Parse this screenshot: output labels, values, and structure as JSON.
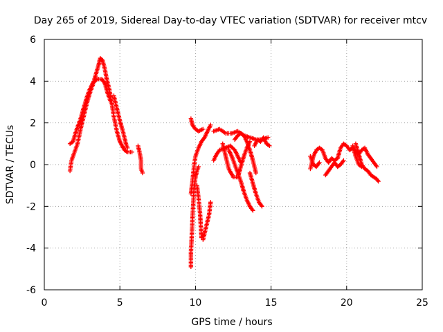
{
  "chart_data": {
    "type": "scatter",
    "title": "Day 265 of 2019, Sidereal Day-to-day VTEC variation (SDTVAR) for receiver mtcv",
    "xlabel": "GPS time / hours",
    "ylabel": "SDTVAR / TECUs",
    "xlim": [
      0,
      25
    ],
    "ylim": [
      -6,
      6
    ],
    "xticks": [
      0,
      5,
      10,
      15,
      20,
      25
    ],
    "yticks": [
      -6,
      -4,
      -2,
      0,
      2,
      4,
      6
    ],
    "grid": true,
    "marker": "plus",
    "color": "#ff0000",
    "tracks": [
      [
        [
          1.7,
          -0.3
        ],
        [
          1.8,
          0.2
        ],
        [
          2.0,
          0.6
        ],
        [
          2.2,
          1.0
        ],
        [
          2.4,
          1.7
        ],
        [
          2.6,
          2.3
        ],
        [
          2.8,
          2.9
        ],
        [
          3.0,
          3.4
        ],
        [
          3.2,
          3.8
        ],
        [
          3.4,
          4.3
        ],
        [
          3.6,
          4.8
        ],
        [
          3.7,
          5.1
        ],
        [
          3.85,
          5.0
        ],
        [
          4.0,
          4.6
        ],
        [
          4.1,
          4.2
        ],
        [
          4.3,
          3.6
        ],
        [
          4.45,
          3.0
        ],
        [
          4.6,
          2.3
        ],
        [
          4.8,
          1.6
        ],
        [
          5.0,
          1.1
        ],
        [
          5.3,
          0.7
        ],
        [
          5.5,
          0.6
        ],
        [
          5.8,
          0.6
        ]
      ],
      [
        [
          1.7,
          1.0
        ],
        [
          1.9,
          1.1
        ],
        [
          2.1,
          1.6
        ],
        [
          2.4,
          2.2
        ],
        [
          2.6,
          2.7
        ],
        [
          2.8,
          3.2
        ],
        [
          3.0,
          3.6
        ],
        [
          3.2,
          3.9
        ],
        [
          3.5,
          4.1
        ],
        [
          3.8,
          4.1
        ],
        [
          4.0,
          3.9
        ],
        [
          4.2,
          3.4
        ],
        [
          4.4,
          3.0
        ]
      ],
      [
        [
          4.6,
          3.3
        ],
        [
          4.8,
          2.7
        ],
        [
          5.0,
          2.1
        ],
        [
          5.2,
          1.6
        ],
        [
          5.4,
          1.0
        ],
        [
          5.5,
          0.8
        ]
      ],
      [
        [
          6.2,
          0.9
        ],
        [
          6.3,
          0.6
        ],
        [
          6.4,
          0.2
        ],
        [
          6.4,
          -0.2
        ],
        [
          6.5,
          -0.4
        ]
      ],
      [
        [
          9.7,
          -4.9
        ],
        [
          9.7,
          -4.2
        ],
        [
          9.75,
          -3.5
        ],
        [
          9.8,
          -2.6
        ],
        [
          9.85,
          -1.9
        ],
        [
          9.9,
          -1.2
        ],
        [
          10.0,
          -0.6
        ],
        [
          10.1,
          -0.3
        ],
        [
          10.2,
          -0.1
        ]
      ],
      [
        [
          9.7,
          -1.4
        ],
        [
          9.8,
          -0.8
        ],
        [
          9.9,
          -0.1
        ],
        [
          10.0,
          0.4
        ],
        [
          10.2,
          0.8
        ],
        [
          10.4,
          1.1
        ],
        [
          10.6,
          1.3
        ],
        [
          10.8,
          1.6
        ],
        [
          11.0,
          1.9
        ]
      ],
      [
        [
          9.7,
          2.2
        ],
        [
          9.8,
          1.9
        ],
        [
          10.0,
          1.7
        ],
        [
          10.2,
          1.6
        ],
        [
          10.5,
          1.7
        ]
      ],
      [
        [
          10.1,
          -1.0
        ],
        [
          10.2,
          -1.6
        ],
        [
          10.3,
          -2.3
        ],
        [
          10.35,
          -2.9
        ],
        [
          10.4,
          -3.5
        ]
      ],
      [
        [
          10.5,
          -3.6
        ],
        [
          10.7,
          -3.0
        ],
        [
          10.9,
          -2.4
        ],
        [
          11.0,
          -1.8
        ]
      ],
      [
        [
          11.2,
          1.6
        ],
        [
          11.6,
          1.7
        ],
        [
          12.0,
          1.5
        ],
        [
          12.4,
          1.5
        ],
        [
          12.8,
          1.6
        ],
        [
          13.2,
          1.4
        ],
        [
          13.6,
          1.3
        ],
        [
          14.0,
          1.2
        ],
        [
          14.4,
          1.2
        ],
        [
          14.8,
          1.3
        ]
      ],
      [
        [
          11.2,
          0.2
        ],
        [
          11.4,
          0.5
        ],
        [
          11.6,
          0.7
        ],
        [
          12.0,
          0.8
        ],
        [
          12.3,
          0.9
        ],
        [
          12.6,
          0.7
        ],
        [
          12.8,
          0.4
        ],
        [
          13.0,
          0.1
        ]
      ],
      [
        [
          11.8,
          1.0
        ],
        [
          12.0,
          0.4
        ],
        [
          12.2,
          -0.2
        ],
        [
          12.5,
          -0.6
        ],
        [
          12.8,
          -0.6
        ]
      ],
      [
        [
          12.2,
          0.7
        ],
        [
          12.4,
          0.4
        ],
        [
          12.6,
          0.0
        ],
        [
          12.8,
          -0.4
        ],
        [
          13.0,
          -0.8
        ],
        [
          13.2,
          -1.3
        ],
        [
          13.4,
          -1.7
        ],
        [
          13.6,
          -2.0
        ],
        [
          13.8,
          -2.2
        ]
      ],
      [
        [
          12.6,
          1.2
        ],
        [
          12.8,
          1.4
        ],
        [
          13.0,
          1.5
        ],
        [
          13.2,
          1.4
        ],
        [
          13.4,
          1.1
        ],
        [
          13.6,
          0.7
        ],
        [
          13.8,
          0.2
        ],
        [
          14.0,
          -0.4
        ]
      ],
      [
        [
          12.8,
          -0.6
        ],
        [
          13.0,
          -0.1
        ],
        [
          13.2,
          0.4
        ],
        [
          13.4,
          0.8
        ],
        [
          13.6,
          1.1
        ]
      ],
      [
        [
          13.6,
          -0.4
        ],
        [
          13.8,
          -0.9
        ],
        [
          14.0,
          -1.4
        ],
        [
          14.2,
          -1.8
        ],
        [
          14.4,
          -2.0
        ]
      ],
      [
        [
          13.9,
          0.9
        ],
        [
          14.1,
          1.2
        ],
        [
          14.3,
          1.1
        ],
        [
          14.5,
          1.3
        ],
        [
          14.7,
          1.0
        ],
        [
          14.9,
          0.9
        ]
      ],
      [
        [
          17.6,
          -0.2
        ],
        [
          17.8,
          0.4
        ],
        [
          18.0,
          0.7
        ],
        [
          18.2,
          0.8
        ],
        [
          18.4,
          0.7
        ],
        [
          18.6,
          0.3
        ],
        [
          18.8,
          0.1
        ],
        [
          19.0,
          0.3
        ],
        [
          19.2,
          0.2
        ],
        [
          19.4,
          0.3
        ],
        [
          19.6,
          0.8
        ],
        [
          19.8,
          1.0
        ],
        [
          20.0,
          0.9
        ],
        [
          20.2,
          0.7
        ],
        [
          20.4,
          0.8
        ],
        [
          20.6,
          0.6
        ],
        [
          20.8,
          0.5
        ],
        [
          21.0,
          0.7
        ],
        [
          21.2,
          0.8
        ],
        [
          21.4,
          0.5
        ],
        [
          21.6,
          0.3
        ],
        [
          21.8,
          0.1
        ],
        [
          22.0,
          -0.1
        ]
      ],
      [
        [
          17.6,
          0.4
        ],
        [
          17.8,
          0.0
        ],
        [
          18.0,
          -0.1
        ],
        [
          18.2,
          0.1
        ]
      ],
      [
        [
          18.6,
          -0.5
        ],
        [
          18.8,
          -0.3
        ],
        [
          19.0,
          -0.1
        ],
        [
          19.2,
          0.1
        ],
        [
          19.4,
          -0.1
        ],
        [
          19.6,
          0.0
        ],
        [
          19.8,
          0.2
        ]
      ],
      [
        [
          20.6,
          1.0
        ],
        [
          20.8,
          0.5
        ],
        [
          21.0,
          0.0
        ],
        [
          21.2,
          -0.2
        ],
        [
          21.4,
          -0.3
        ],
        [
          21.6,
          -0.5
        ],
        [
          21.8,
          -0.6
        ],
        [
          22.0,
          -0.7
        ],
        [
          22.1,
          -0.8
        ]
      ],
      [
        [
          20.4,
          0.9
        ],
        [
          20.6,
          0.4
        ],
        [
          20.8,
          0.0
        ],
        [
          21.0,
          -0.1
        ]
      ]
    ]
  }
}
